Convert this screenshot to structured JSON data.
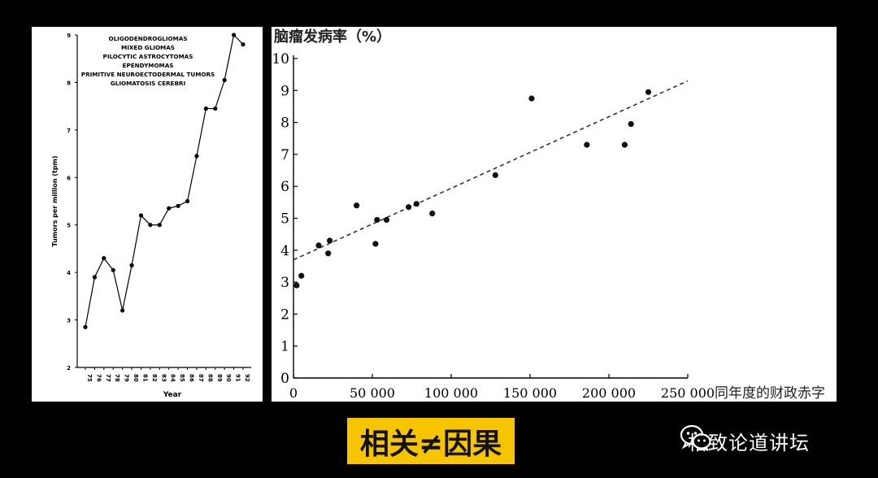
{
  "caption": "相关≠因果",
  "brand": {
    "name": "格致论道讲坛",
    "icon": "wechat-icon"
  },
  "chart_data": [
    {
      "type": "line",
      "title_lines": [
        "OLIGODENDROGLIOMAS",
        "MIXED GLIOMAS",
        "PILOCYTIC ASTROCYTOMAS",
        "EPENDYMOMAS",
        "PRIMITIVE NEUROECTODERMAL TUMORS",
        "GLIOMATOSIS CEREBRI"
      ],
      "xlabel": "Year",
      "ylabel": "Tumors per million (tpm)",
      "ylim": [
        2,
        9
      ],
      "y_ticks": [
        "2",
        "3",
        "4",
        "5",
        "6",
        "7",
        "8",
        "9"
      ],
      "x_ticks": [
        "75",
        "76",
        "77",
        "78",
        "79",
        "80",
        "81",
        "82",
        "83",
        "84",
        "85",
        "86",
        "87",
        "88",
        "89",
        "90",
        "91",
        "92"
      ],
      "x": [
        75,
        76,
        77,
        78,
        79,
        80,
        81,
        82,
        83,
        84,
        85,
        86,
        87,
        88,
        89,
        90,
        91,
        92
      ],
      "y": [
        2.85,
        3.9,
        4.3,
        4.05,
        3.2,
        4.15,
        5.2,
        5.0,
        5.0,
        5.35,
        5.4,
        5.5,
        6.45,
        7.45,
        7.45,
        8.05,
        9.0,
        8.8
      ]
    },
    {
      "type": "scatter",
      "ylabel": "脑瘤发病率（%）",
      "xlabel": "同年度的财政赤字",
      "xlim": [
        0,
        250000
      ],
      "ylim": [
        0,
        10
      ],
      "x_ticks": [
        "0",
        "50 000",
        "100 000",
        "150 000",
        "200 000",
        "250 000"
      ],
      "x_tick_values": [
        0,
        50000,
        100000,
        150000,
        200000,
        250000
      ],
      "y_ticks": [
        "0",
        "1",
        "2",
        "3",
        "4",
        "5",
        "6",
        "7",
        "8",
        "9",
        "10"
      ],
      "points": [
        {
          "x": 2000,
          "y": 2.9
        },
        {
          "x": 5000,
          "y": 3.2
        },
        {
          "x": 16000,
          "y": 4.15
        },
        {
          "x": 22000,
          "y": 3.9
        },
        {
          "x": 23000,
          "y": 4.3
        },
        {
          "x": 40000,
          "y": 5.4
        },
        {
          "x": 52000,
          "y": 4.2
        },
        {
          "x": 53000,
          "y": 4.95
        },
        {
          "x": 59000,
          "y": 4.95
        },
        {
          "x": 73000,
          "y": 5.35
        },
        {
          "x": 78000,
          "y": 5.45
        },
        {
          "x": 88000,
          "y": 5.15
        },
        {
          "x": 128000,
          "y": 6.35
        },
        {
          "x": 151000,
          "y": 8.75
        },
        {
          "x": 186000,
          "y": 7.3
        },
        {
          "x": 210000,
          "y": 7.3
        },
        {
          "x": 214000,
          "y": 7.95
        },
        {
          "x": 225000,
          "y": 8.95
        }
      ],
      "trendline": {
        "x": [
          0,
          250000
        ],
        "y": [
          3.7,
          9.3
        ],
        "style": "dashed"
      }
    }
  ]
}
